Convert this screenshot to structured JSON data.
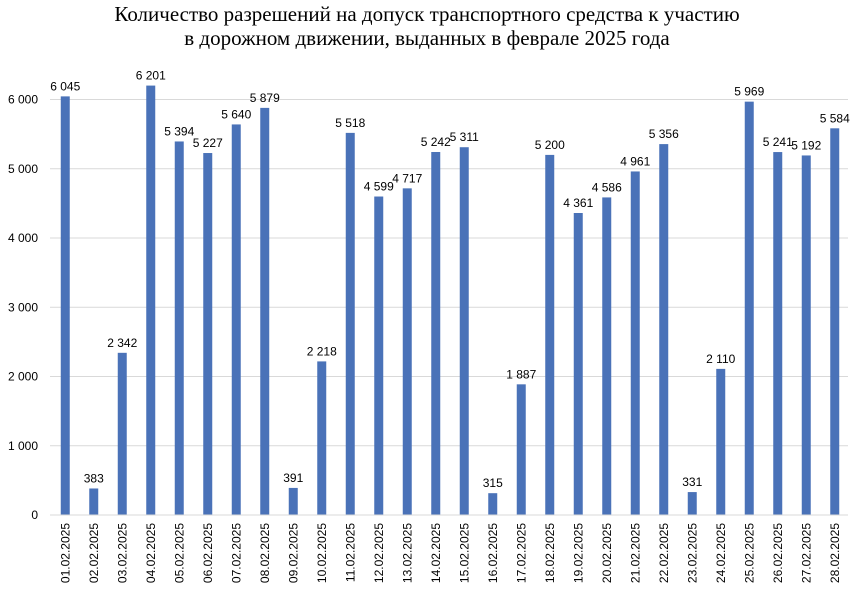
{
  "chart_data": {
    "type": "bar",
    "title_lines": [
      "Количество разрешений на допуск транспортного средства к участию",
      "в дорожном движении, выданных в феврале 2025 года"
    ],
    "xlabel": "",
    "ylabel": "",
    "ylim": [
      0,
      6000
    ],
    "yticks": [
      0,
      1000,
      2000,
      3000,
      4000,
      5000,
      6000
    ],
    "ytick_labels": [
      "0",
      "1 000",
      "2 000",
      "3 000",
      "4 000",
      "5 000",
      "6 000"
    ],
    "grid": true,
    "legend": "none",
    "bar_color": "#4a72b8",
    "grid_color": "#d9d9d9",
    "categories": [
      "01.02.2025",
      "02.02.2025",
      "03.02.2025",
      "04.02.2025",
      "05.02.2025",
      "06.02.2025",
      "07.02.2025",
      "08.02.2025",
      "09.02.2025",
      "10.02.2025",
      "11.02.2025",
      "12.02.2025",
      "13.02.2025",
      "14.02.2025",
      "15.02.2025",
      "16.02.2025",
      "17.02.2025",
      "18.02.2025",
      "19.02.2025",
      "20.02.2025",
      "21.02.2025",
      "22.02.2025",
      "23.02.2025",
      "24.02.2025",
      "25.02.2025",
      "26.02.2025",
      "27.02.2025",
      "28.02.2025"
    ],
    "values": [
      6045,
      383,
      2342,
      6201,
      5394,
      5227,
      5640,
      5879,
      391,
      2218,
      5518,
      4599,
      4717,
      5242,
      5311,
      315,
      1887,
      5200,
      4361,
      4586,
      4961,
      5356,
      331,
      2110,
      5969,
      5241,
      5192,
      5584
    ],
    "data_labels": [
      "6 045",
      "383",
      "2 342",
      "6 201",
      "5 394",
      "5 227",
      "5 640",
      "5 879",
      "391",
      "2 218",
      "5 518",
      "4 599",
      "4 717",
      "5 242",
      "5 311",
      "315",
      "1 887",
      "5 200",
      "4 361",
      "4 586",
      "4 961",
      "5 356",
      "331",
      "2 110",
      "5 969",
      "5 241",
      "5 192",
      "5 584"
    ]
  }
}
